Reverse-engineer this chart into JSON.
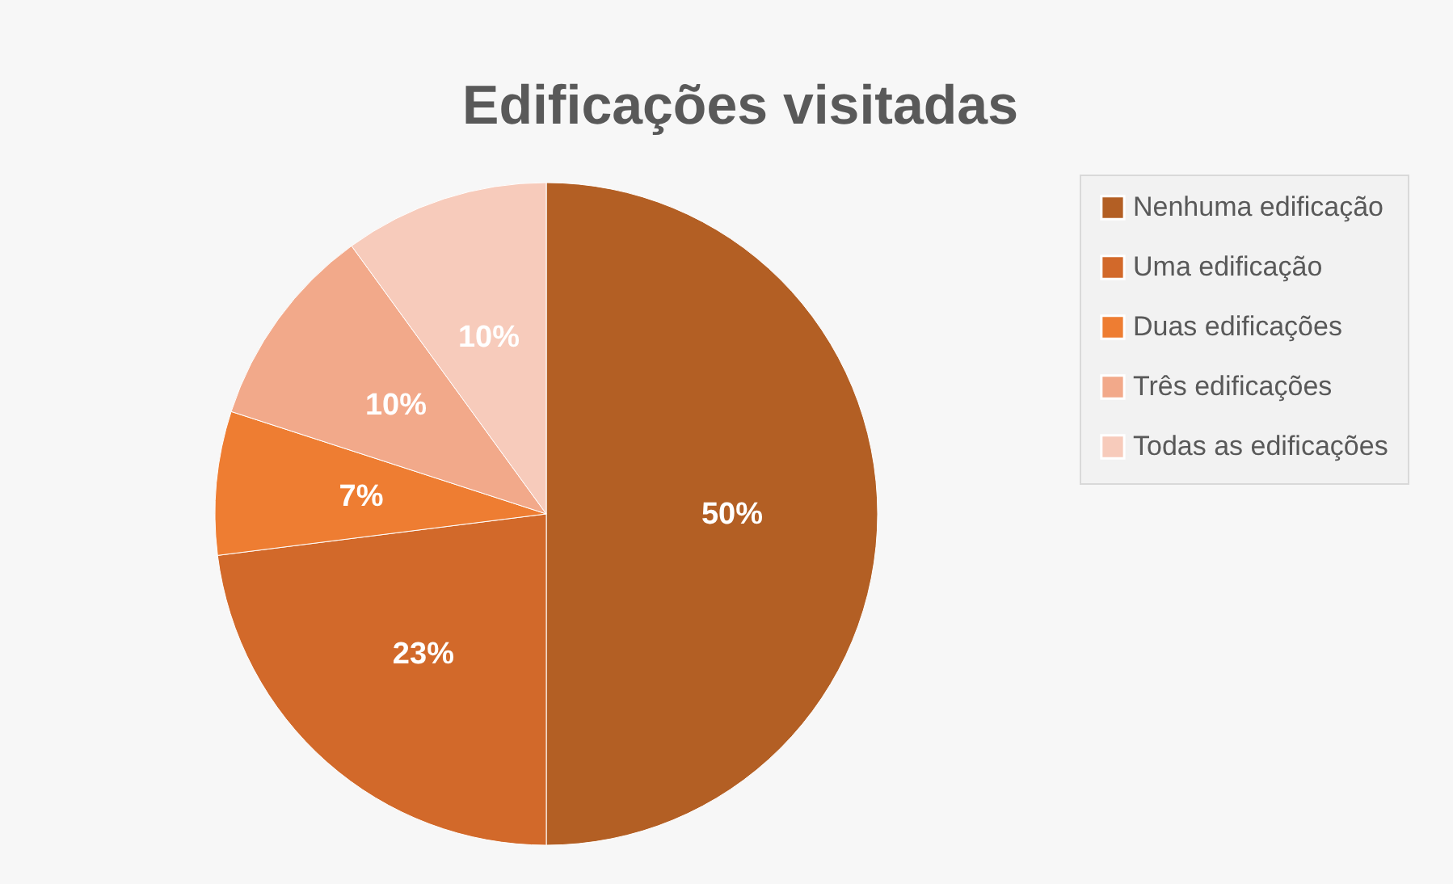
{
  "chart_data": {
    "type": "pie",
    "title": "Edificações visitadas",
    "categories": [
      "Nenhuma edificação",
      "Uma edificação",
      "Duas edificações",
      "Três edificações",
      "Todas as edificações"
    ],
    "values": [
      50,
      23,
      7,
      10,
      10
    ],
    "value_labels": [
      "50%",
      "23%",
      "7%",
      "10%",
      "10%"
    ],
    "colors": [
      "#b35f24",
      "#d2692a",
      "#ee7d32",
      "#f2a98a",
      "#f7cbbb"
    ],
    "legend": "right"
  }
}
